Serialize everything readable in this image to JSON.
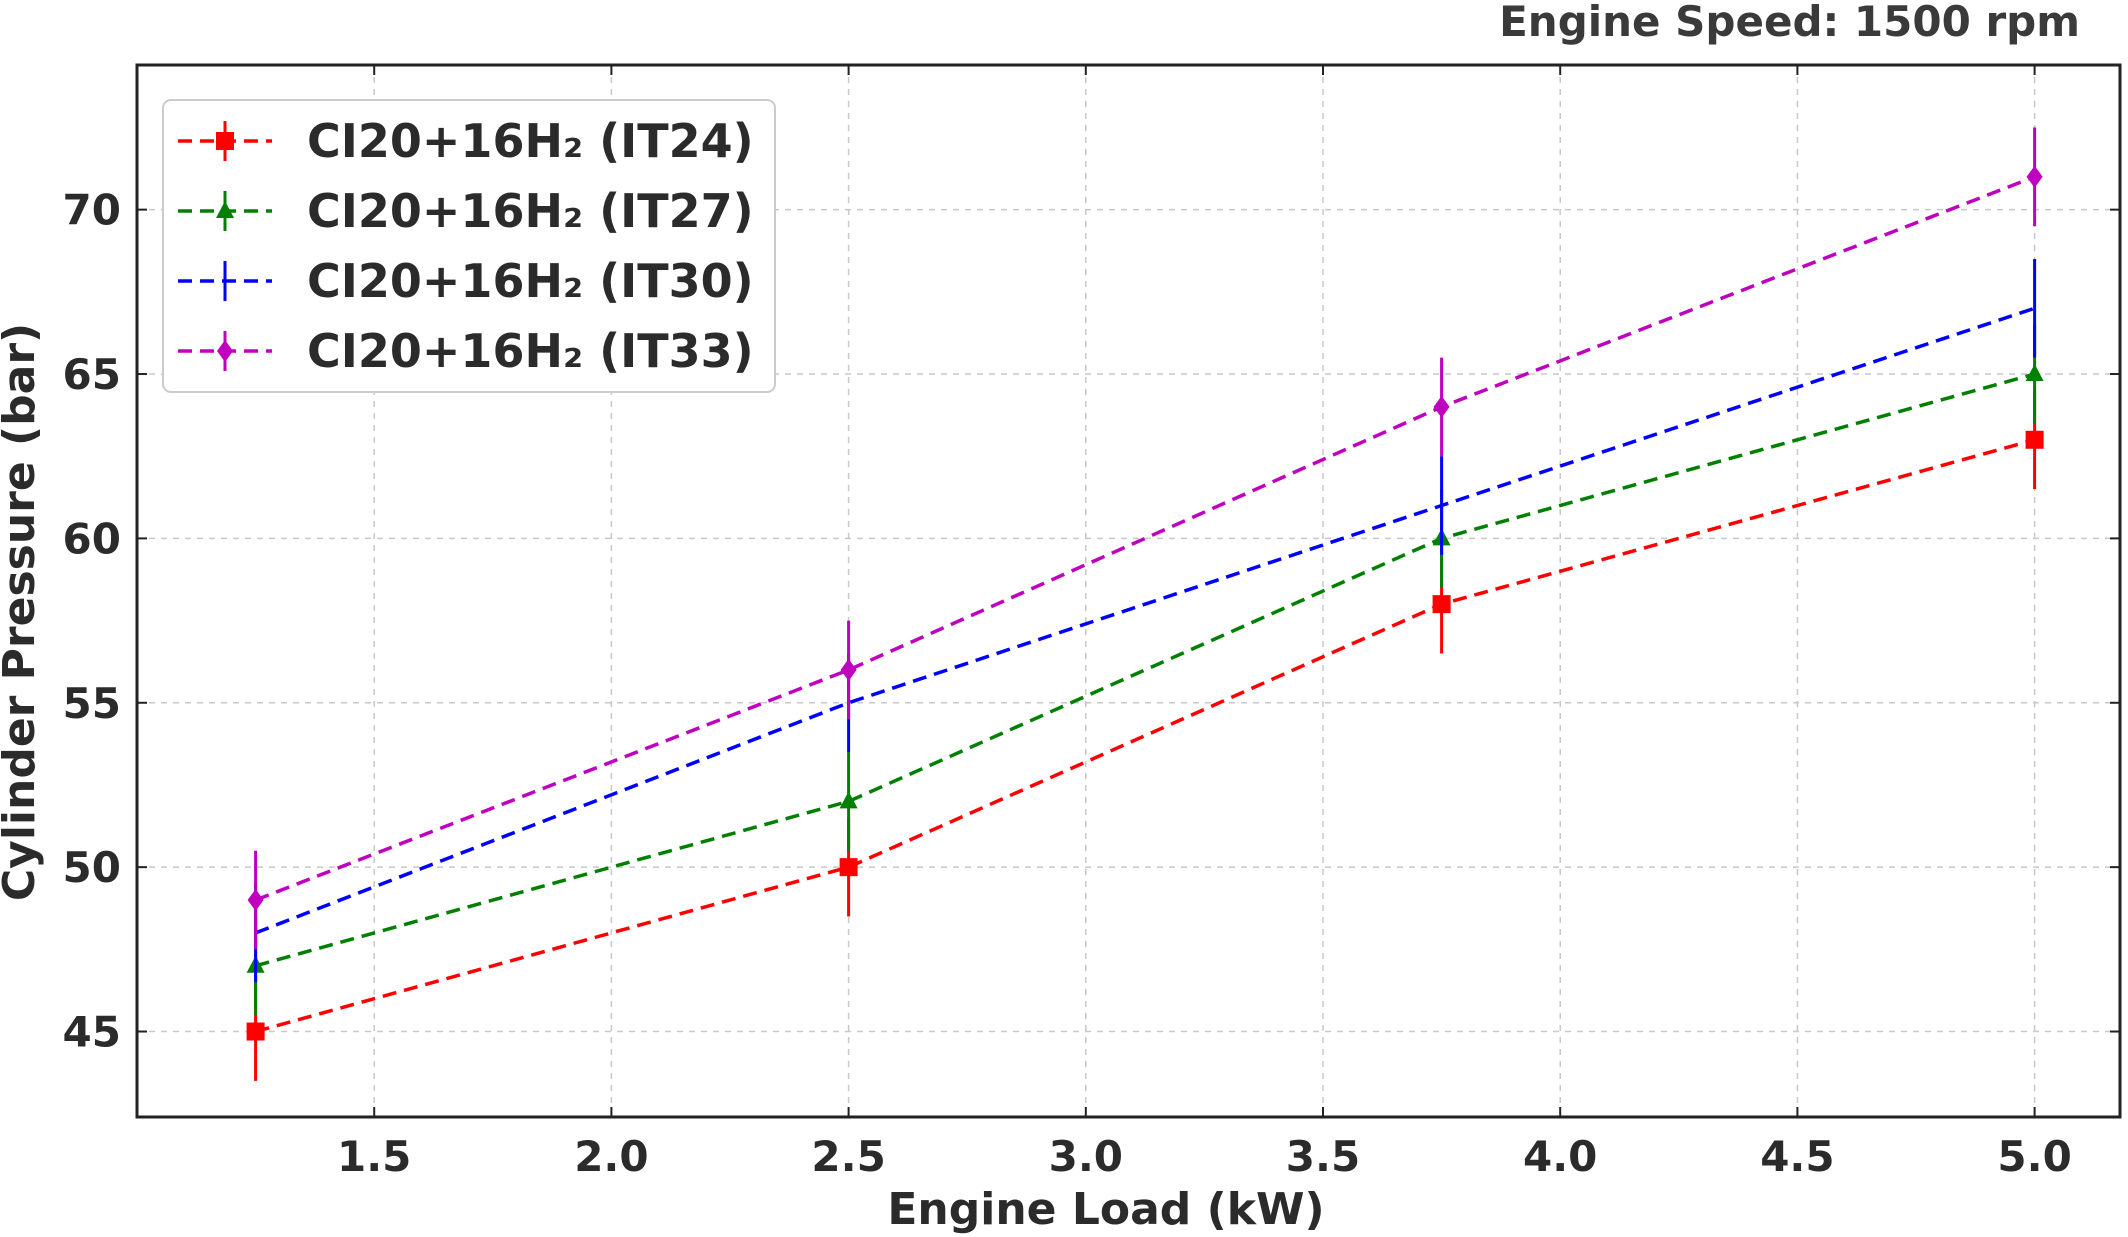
{
  "chart_data": {
    "type": "line",
    "annotation": "Engine Speed: 1500 rpm",
    "xlabel": "Engine Load (kW)",
    "ylabel": "Cylinder Pressure (bar)",
    "xlim": [
      1.0,
      5.18
    ],
    "ylim": [
      42.4,
      74.4
    ],
    "x_ticks": [
      1.5,
      2.0,
      2.5,
      3.0,
      3.5,
      4.0,
      4.5,
      5.0
    ],
    "x_tick_labels": [
      "1.5",
      "2.0",
      "2.5",
      "3.0",
      "3.5",
      "4.0",
      "4.5",
      "5.0"
    ],
    "y_ticks": [
      45,
      50,
      55,
      60,
      65,
      70
    ],
    "y_tick_labels": [
      "45",
      "50",
      "55",
      "60",
      "65",
      "70"
    ],
    "grid": true,
    "legend_position": "top-left",
    "x": [
      1.25,
      2.5,
      3.75,
      5.0
    ],
    "series": [
      {
        "name": "CI20+16H₂ (IT24)",
        "color": "#ff0000",
        "marker": "square",
        "values": [
          45,
          50,
          58,
          63
        ],
        "errors": [
          1.5,
          1.5,
          1.5,
          1.5
        ]
      },
      {
        "name": "CI20+16H₂ (IT27)",
        "color": "#008000",
        "marker": "triangle",
        "values": [
          47,
          52,
          60,
          65
        ],
        "errors": [
          1.5,
          1.5,
          1.5,
          1.5
        ]
      },
      {
        "name": "CI20+16H₂ (IT30)",
        "color": "#0000ff",
        "marker": "none",
        "values": [
          48,
          55,
          61,
          67
        ],
        "errors": [
          1.5,
          1.5,
          1.5,
          1.5
        ]
      },
      {
        "name": "CI20+16H₂ (IT33)",
        "color": "#bf00bf",
        "marker": "diamond",
        "values": [
          49,
          56,
          64,
          71
        ],
        "errors": [
          1.5,
          1.5,
          1.5,
          1.5
        ]
      }
    ]
  }
}
